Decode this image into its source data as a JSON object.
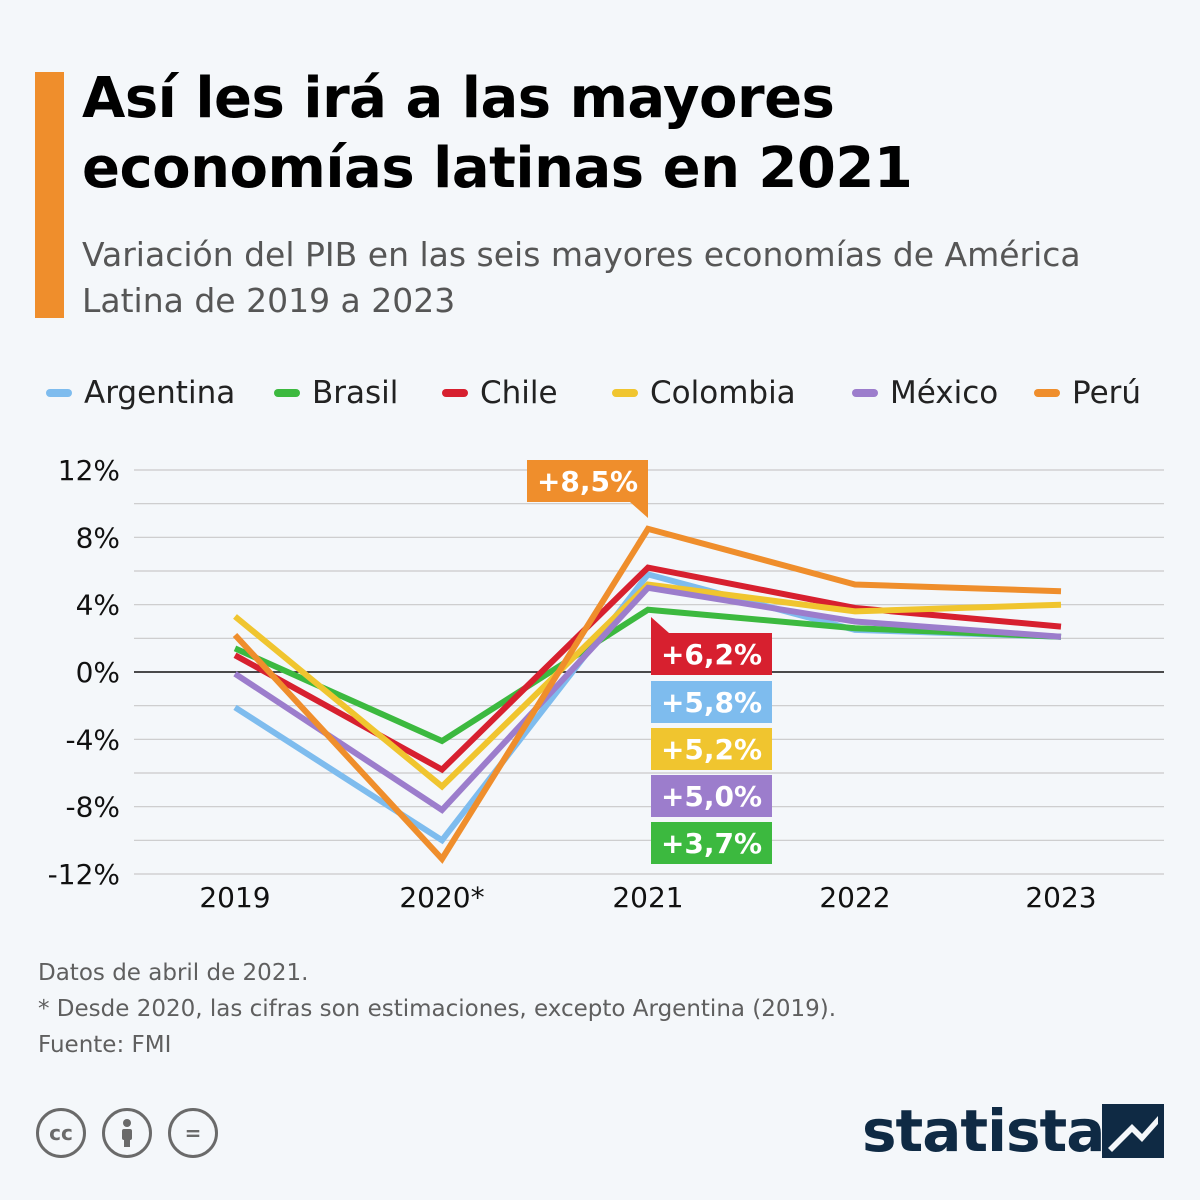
{
  "header": {
    "title": "Así les irá a las mayores economías latinas en 2021",
    "subtitle": "Variación del PIB en las seis mayores economías de América Latina de 2019 a 2023",
    "accent_color": "#ef8e2c"
  },
  "chart_data": {
    "type": "line",
    "x": [
      "2019",
      "2020*",
      "2021",
      "2022",
      "2023"
    ],
    "ylim": [
      -12,
      12
    ],
    "yticks": [
      12,
      8,
      4,
      0,
      -4,
      -8,
      -12
    ],
    "ytick_labels": [
      "12%",
      "8%",
      "4%",
      "0%",
      "-4%",
      "-8%",
      "-12%"
    ],
    "grid": true,
    "legend_position": "top",
    "series": [
      {
        "name": "Argentina",
        "color": "#7ebcee",
        "values": [
          -2.1,
          -10.0,
          5.8,
          2.5,
          2.1
        ]
      },
      {
        "name": "Brasil",
        "color": "#3cb93f",
        "values": [
          1.4,
          -4.1,
          3.7,
          2.6,
          2.1
        ]
      },
      {
        "name": "Chile",
        "color": "#d7202f",
        "values": [
          1.0,
          -5.8,
          6.2,
          3.8,
          2.7
        ]
      },
      {
        "name": "Colombia",
        "color": "#f0c52f",
        "values": [
          3.3,
          -6.8,
          5.2,
          3.6,
          4.0
        ]
      },
      {
        "name": "México",
        "color": "#9c7dcc",
        "values": [
          -0.1,
          -8.2,
          5.0,
          3.0,
          2.1
        ]
      },
      {
        "name": "Perú",
        "color": "#ef8e2c",
        "values": [
          2.2,
          -11.1,
          8.5,
          5.2,
          4.8
        ]
      }
    ],
    "callouts": [
      {
        "label": "+8,5%",
        "color": "#ef8e2c",
        "series": "Perú"
      },
      {
        "label": "+6,2%",
        "color": "#d7202f",
        "series": "Chile"
      },
      {
        "label": "+5,8%",
        "color": "#7ebcee",
        "series": "Argentina"
      },
      {
        "label": "+5,2%",
        "color": "#f0c52f",
        "series": "Colombia"
      },
      {
        "label": "+5,0%",
        "color": "#9c7dcc",
        "series": "México"
      },
      {
        "label": "+3,7%",
        "color": "#3cb93f",
        "series": "Brasil"
      }
    ]
  },
  "footer": {
    "note1": "Datos de abril de 2021.",
    "note2": "* Desde 2020, las cifras son estimaciones, excepto Argentina (2019).",
    "source": "Fuente: FMI",
    "license_icons": [
      "cc-icon",
      "attribution-icon",
      "no-derivatives-icon"
    ],
    "cc_text": "cc",
    "nd_text": "=",
    "brand": "statista",
    "brand_color": "#0f2a44"
  }
}
